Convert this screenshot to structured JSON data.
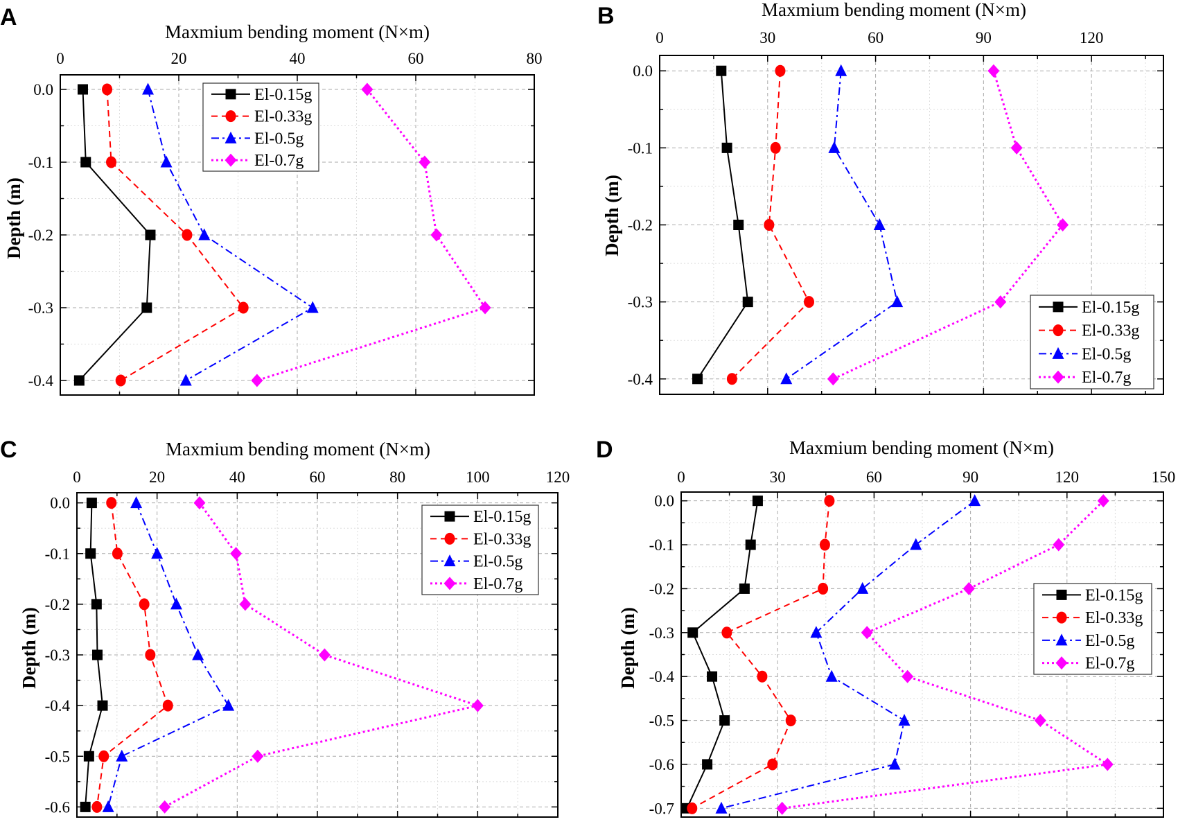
{
  "chart_data": [
    {
      "panel_label": "A",
      "type": "line",
      "xlabel": "Maxmium bending moment (N×m)",
      "ylabel": "Depth (m)",
      "xlim": [
        0,
        80
      ],
      "xticks": [
        0,
        20,
        40,
        60,
        80
      ],
      "x_minor_step": 10,
      "ylim": [
        -0.42,
        0.02
      ],
      "yticks": [
        0.0,
        -0.1,
        -0.2,
        -0.3,
        -0.4
      ],
      "y_minor_step": 0.05,
      "ytick_labels": [
        "0.0",
        "-0.1",
        "-0.2",
        "-0.3",
        "-0.4"
      ],
      "grid": true,
      "legend_position": "top-center",
      "depths": [
        0.0,
        -0.1,
        -0.2,
        -0.3,
        -0.4
      ],
      "series": [
        {
          "name": "El-0.15g",
          "color": "#000000",
          "line": "solid",
          "marker": "square",
          "values": [
            3.8,
            4.3,
            15.2,
            14.6,
            3.2
          ]
        },
        {
          "name": "El-0.33g",
          "color": "#ff0000",
          "line": "dash",
          "marker": "circle",
          "values": [
            7.9,
            8.6,
            21.4,
            30.9,
            10.2
          ]
        },
        {
          "name": "El-0.5g",
          "color": "#0000ff",
          "line": "dash-dot",
          "marker": "triangle",
          "values": [
            14.8,
            17.9,
            24.3,
            42.6,
            21.2
          ]
        },
        {
          "name": "El-0.7g",
          "color": "#ff00ff",
          "line": "dot",
          "marker": "diamond",
          "values": [
            51.8,
            61.5,
            63.5,
            71.7,
            33.2
          ]
        }
      ]
    },
    {
      "panel_label": "B",
      "type": "line",
      "xlabel": "Maxmium bending moment (N×m)",
      "ylabel": "Depth (m)",
      "xlim": [
        0,
        140
      ],
      "xticks": [
        0,
        30,
        60,
        90,
        120
      ],
      "x_minor_step": 15,
      "ylim": [
        -0.42,
        0.02
      ],
      "yticks": [
        0.0,
        -0.1,
        -0.2,
        -0.3,
        -0.4
      ],
      "y_minor_step": 0.05,
      "ytick_labels": [
        "0.0",
        "-0.1",
        "-0.2",
        "-0.3",
        "-0.4"
      ],
      "grid": true,
      "legend_position": "bottom-right",
      "depths": [
        0.0,
        -0.1,
        -0.2,
        -0.3,
        -0.4
      ],
      "series": [
        {
          "name": "El-0.15g",
          "color": "#000000",
          "line": "solid",
          "marker": "square",
          "values": [
            17.1,
            18.7,
            21.9,
            24.5,
            10.5
          ]
        },
        {
          "name": "El-0.33g",
          "color": "#ff0000",
          "line": "dash",
          "marker": "circle",
          "values": [
            33.5,
            32.2,
            30.4,
            41.5,
            20.1
          ]
        },
        {
          "name": "El-0.5g",
          "color": "#0000ff",
          "line": "dash-dot",
          "marker": "triangle",
          "values": [
            50.4,
            48.5,
            61.1,
            66.0,
            35.2
          ]
        },
        {
          "name": "El-0.7g",
          "color": "#ff00ff",
          "line": "dot",
          "marker": "diamond",
          "values": [
            92.8,
            99.2,
            112.0,
            94.7,
            48.2
          ]
        }
      ]
    },
    {
      "panel_label": "C",
      "type": "line",
      "xlabel": "Maxmium bending moment (N×m)",
      "ylabel": "Depth (m)",
      "xlim": [
        0,
        120
      ],
      "xticks": [
        0,
        20,
        40,
        60,
        80,
        100,
        120
      ],
      "x_minor_step": 10,
      "ylim": [
        -0.62,
        0.02
      ],
      "yticks": [
        0.0,
        -0.1,
        -0.2,
        -0.3,
        -0.4,
        -0.5,
        -0.6
      ],
      "y_minor_step": 0.05,
      "ytick_labels": [
        "0.0",
        "-0.1",
        "-0.2",
        "-0.3",
        "-0.4",
        "-0.5",
        "-0.6"
      ],
      "grid": true,
      "legend_position": "top-right",
      "depths": [
        0.0,
        -0.1,
        -0.2,
        -0.3,
        -0.4,
        -0.5,
        -0.6
      ],
      "series": [
        {
          "name": "El-0.15g",
          "color": "#000000",
          "line": "solid",
          "marker": "square",
          "values": [
            3.7,
            3.4,
            4.9,
            5.1,
            6.4,
            3.0,
            2.1
          ]
        },
        {
          "name": "El-0.33g",
          "color": "#ff0000",
          "line": "dash",
          "marker": "circle",
          "values": [
            8.6,
            10.1,
            16.8,
            18.3,
            22.7,
            6.7,
            5.0
          ]
        },
        {
          "name": "El-0.5g",
          "color": "#0000ff",
          "line": "dash-dot",
          "marker": "triangle",
          "values": [
            14.8,
            20.0,
            24.8,
            30.2,
            37.8,
            11.2,
            7.8
          ]
        },
        {
          "name": "El-0.7g",
          "color": "#ff00ff",
          "line": "dot",
          "marker": "diamond",
          "values": [
            30.6,
            39.7,
            42.0,
            61.8,
            100.0,
            45.1,
            21.9
          ]
        }
      ]
    },
    {
      "panel_label": "D",
      "type": "line",
      "xlabel": "Maxmium bending moment (N×m)",
      "ylabel": "Depth (m)",
      "xlim": [
        0,
        150
      ],
      "xticks": [
        0,
        30,
        60,
        90,
        120,
        150
      ],
      "x_minor_step": 15,
      "ylim": [
        -0.72,
        0.02
      ],
      "yticks": [
        0.0,
        -0.1,
        -0.2,
        -0.3,
        -0.4,
        -0.5,
        -0.6,
        -0.7
      ],
      "y_minor_step": 0.05,
      "ytick_labels": [
        "0.0",
        "-0.1",
        "-0.2",
        "-0.3",
        "-0.4",
        "-0.5",
        "-0.6",
        "-0.7"
      ],
      "grid": true,
      "legend_position": "middle-right",
      "depths": [
        0.0,
        -0.1,
        -0.2,
        -0.3,
        -0.4,
        -0.5,
        -0.6,
        -0.7
      ],
      "series": [
        {
          "name": "El-0.15g",
          "color": "#000000",
          "line": "solid",
          "marker": "square",
          "values": [
            23.8,
            21.6,
            19.7,
            3.6,
            9.6,
            13.5,
            8.1,
            1.8
          ]
        },
        {
          "name": "El-0.33g",
          "color": "#ff0000",
          "line": "dash",
          "marker": "circle",
          "values": [
            46.1,
            44.7,
            44.1,
            14.2,
            25.2,
            34.1,
            28.4,
            3.4
          ]
        },
        {
          "name": "El-0.5g",
          "color": "#0000ff",
          "line": "dash-dot",
          "marker": "triangle",
          "values": [
            91.3,
            73.0,
            56.4,
            42.0,
            46.8,
            69.4,
            66.4,
            12.5
          ]
        },
        {
          "name": "El-0.7g",
          "color": "#ff00ff",
          "line": "dot",
          "marker": "diamond",
          "values": [
            131.3,
            117.4,
            89.5,
            57.8,
            70.4,
            111.7,
            132.6,
            31.4
          ]
        }
      ]
    }
  ]
}
